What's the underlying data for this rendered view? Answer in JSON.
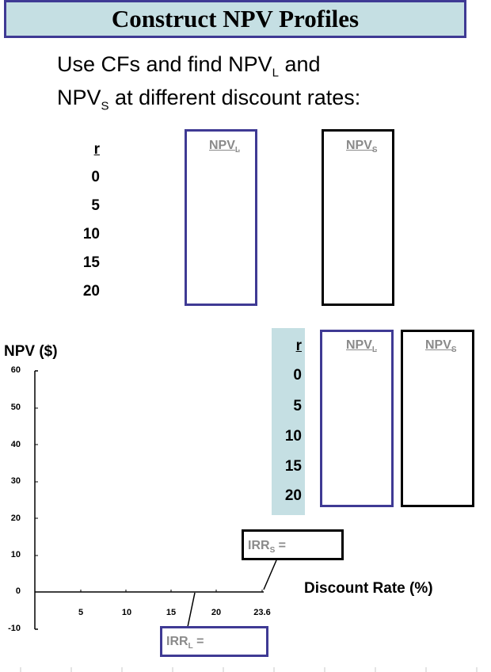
{
  "title": "Construct NPV Profiles",
  "intro": {
    "line1_pre": "Use CFs and find NPV",
    "line1_sub": "L",
    "line1_post": " and",
    "line2_pre": "NPV",
    "line2_sub": "S",
    "line2_post": " at different discount rates:"
  },
  "table_top": {
    "r_header": "r",
    "npv_l_header": "NPV",
    "npv_l_sub": "L",
    "npv_s_header": "NPV",
    "npv_s_sub": "S",
    "rates": [
      "0",
      "5",
      "10",
      "15",
      "20"
    ]
  },
  "table_side": {
    "r_header": "r",
    "npv_l_header": "NPV",
    "npv_l_sub": "L",
    "npv_s_header": "NPV",
    "npv_s_sub": "S",
    "rates": [
      "0",
      "5",
      "10",
      "15",
      "20"
    ]
  },
  "colors": {
    "blue_border": "#3f3a94",
    "header_fill": "#c5dfe3",
    "gray_text": "#8a8a8a"
  },
  "chart_data": {
    "type": "line",
    "title": "",
    "ylabel": "NPV ($)",
    "xlabel": "Discount Rate (%)",
    "ylim": [
      -10,
      60
    ],
    "yticks": [
      "60",
      "50",
      "40",
      "30",
      "20",
      "10",
      "0",
      "-10"
    ],
    "xticks": [
      "5",
      "10",
      "15",
      "20",
      "23.6"
    ],
    "x": [
      5,
      10,
      15,
      20,
      23.6
    ],
    "series": [],
    "annotations": [
      {
        "label_pre": "IRR",
        "label_sub": "S",
        "label_post": " ="
      },
      {
        "label_pre": "IRR",
        "label_sub": "L",
        "label_post": " ="
      }
    ]
  }
}
